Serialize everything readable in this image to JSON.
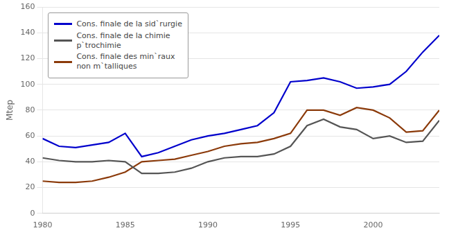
{
  "chart_data": {
    "type": "line",
    "x": [
      1980,
      1981,
      1982,
      1983,
      1984,
      1985,
      1986,
      1987,
      1988,
      1989,
      1990,
      1991,
      1992,
      1993,
      1994,
      1995,
      1996,
      1997,
      1998,
      1999,
      2000,
      2001,
      2002,
      2003,
      2004
    ],
    "series": [
      {
        "name": "Cons. finale de la sid`rurgie",
        "color": "#0000CC",
        "values": [
          58,
          52,
          51,
          53,
          55,
          62,
          44,
          47,
          52,
          57,
          60,
          62,
          65,
          68,
          78,
          102,
          103,
          105,
          102,
          97,
          98,
          100,
          110,
          125,
          138
        ]
      },
      {
        "name": "Cons. finale de la chimie\np`trochimie",
        "color": "#555555",
        "values": [
          43,
          41,
          40,
          40,
          41,
          40,
          31,
          31,
          32,
          35,
          40,
          43,
          44,
          44,
          46,
          52,
          68,
          73,
          67,
          65,
          58,
          60,
          55,
          56,
          72
        ]
      },
      {
        "name": "Cons. finale des min`raux\nnon m`talliques",
        "color": "#8B3A0A",
        "values": [
          25,
          24,
          24,
          25,
          28,
          32,
          40,
          41,
          42,
          45,
          48,
          52,
          54,
          55,
          58,
          62,
          80,
          80,
          76,
          82,
          80,
          74,
          63,
          64,
          80
        ]
      }
    ],
    "ylabel": "Mtep",
    "xlim": [
      1980,
      2004
    ],
    "ylim": [
      0,
      160
    ],
    "xticks": [
      1980,
      1985,
      1990,
      1995,
      2000
    ],
    "yticks": [
      0,
      20,
      40,
      60,
      80,
      100,
      120,
      140,
      160
    ],
    "grid": "y",
    "legend": "upper left"
  }
}
